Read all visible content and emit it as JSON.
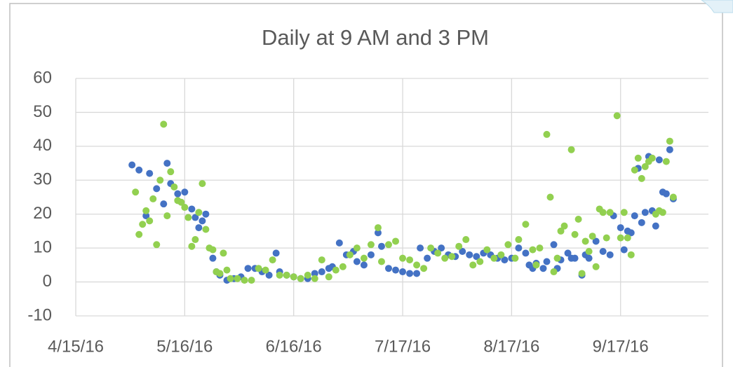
{
  "chart_data": {
    "type": "scatter",
    "title": "Daily at 9 AM and 3 PM",
    "xlim": [
      42475,
      42655
    ],
    "ylim": [
      -10,
      60
    ],
    "xticks": [
      {
        "value": 42475,
        "label": "4/15/16"
      },
      {
        "value": 42506,
        "label": "5/16/16"
      },
      {
        "value": 42537,
        "label": "6/16/16"
      },
      {
        "value": 42568,
        "label": "7/17/16"
      },
      {
        "value": 42599,
        "label": "8/17/16"
      },
      {
        "value": 42630,
        "label": "9/17/16"
      }
    ],
    "yticks": [
      -10,
      0,
      10,
      20,
      30,
      40,
      50,
      60
    ],
    "grid": true,
    "series": [
      {
        "color": "#4472c4",
        "x": [
          42491,
          42493,
          42495,
          42496,
          42498,
          42500,
          42501,
          42502,
          42504,
          42506,
          42508,
          42509,
          42510,
          42511,
          42512,
          42514,
          42515,
          42516,
          42518,
          42520,
          42522,
          42524,
          42526,
          42528,
          42530,
          42532,
          42533,
          42535,
          42537,
          42539,
          42541,
          42543,
          42545,
          42547,
          42548,
          42550,
          42552,
          42554,
          42555,
          42557,
          42559,
          42561,
          42562,
          42564,
          42566,
          42568,
          42570,
          42572,
          42573,
          42575,
          42577,
          42579,
          42581,
          42583,
          42585,
          42587,
          42589,
          42591,
          42593,
          42595,
          42597,
          42599,
          42601,
          42603,
          42604,
          42605,
          42606,
          42608,
          42609,
          42611,
          42612,
          42613,
          42615,
          42616,
          42617,
          42619,
          42620,
          42621,
          42623,
          42625,
          42627,
          42628,
          42630,
          42631,
          42632,
          42633,
          42634,
          42635,
          42636,
          42637,
          42638,
          42639,
          42640,
          42641,
          42642,
          42643,
          42644,
          42645
        ],
        "values": [
          34.5,
          33,
          19.5,
          32,
          27.5,
          23,
          35,
          29,
          26,
          26.5,
          21.5,
          19,
          16,
          18,
          20,
          7,
          3,
          2,
          0.5,
          1,
          1.5,
          4,
          4,
          3,
          2,
          8.5,
          3,
          2,
          1.5,
          1,
          1,
          2.5,
          3,
          4,
          4.5,
          11.5,
          8,
          9,
          6,
          5,
          8,
          14.5,
          10.5,
          4,
          3.5,
          3,
          2.5,
          2.5,
          10,
          7,
          9,
          10,
          8,
          7.5,
          9,
          8,
          7.5,
          8.5,
          8,
          7,
          6.5,
          7,
          10,
          8.5,
          5,
          4,
          5.5,
          4,
          6,
          11,
          4,
          6.5,
          8.5,
          7,
          7,
          2,
          8,
          7,
          12,
          9,
          8,
          19.5,
          16,
          9.5,
          15,
          14.5,
          19.5,
          33.5,
          17.5,
          20.5,
          37,
          21,
          16.5,
          36,
          26.5,
          26,
          39,
          24.5
        ]
      },
      {
        "color": "#92d050",
        "x": [
          42492,
          42493,
          42494,
          42495,
          42496,
          42497,
          42498,
          42499,
          42500,
          42501,
          42502,
          42503,
          42504,
          42505,
          42506,
          42507,
          42508,
          42509,
          42510,
          42511,
          42512,
          42513,
          42514,
          42515,
          42516,
          42517,
          42518,
          42519,
          42521,
          42523,
          42525,
          42527,
          42529,
          42531,
          42533,
          42535,
          42537,
          42539,
          42541,
          42543,
          42545,
          42547,
          42549,
          42551,
          42553,
          42555,
          42557,
          42559,
          42561,
          42562,
          42564,
          42566,
          42568,
          42570,
          42572,
          42574,
          42576,
          42578,
          42580,
          42582,
          42584,
          42586,
          42588,
          42590,
          42592,
          42594,
          42596,
          42598,
          42600,
          42601,
          42603,
          42605,
          42606,
          42607,
          42609,
          42610,
          42611,
          42612,
          42613,
          42614,
          42616,
          42617,
          42618,
          42619,
          42620,
          42621,
          42622,
          42623,
          42624,
          42625,
          42626,
          42627,
          42629,
          42630,
          42631,
          42632,
          42633,
          42634,
          42635,
          42636,
          42637,
          42638,
          42639,
          42640,
          42641,
          42642,
          42643,
          42644,
          42645
        ],
        "values": [
          26.5,
          14,
          17,
          21,
          18,
          24.5,
          11,
          30,
          46.5,
          19.5,
          32.5,
          28,
          24,
          23.5,
          22,
          19,
          10.5,
          12.5,
          20.5,
          29,
          15.5,
          10,
          9.5,
          3,
          2.5,
          8.5,
          3.5,
          1,
          1,
          0.5,
          0.5,
          4,
          3.5,
          6.5,
          2,
          2,
          1.5,
          1,
          2,
          1,
          6.5,
          1.5,
          3.5,
          4.5,
          8,
          10,
          7,
          11,
          16,
          6,
          11,
          12,
          7,
          6.5,
          5,
          4,
          10,
          8.5,
          7,
          7.5,
          10.5,
          12.5,
          5,
          6,
          9.5,
          7,
          8,
          11,
          7,
          12.5,
          17,
          9.5,
          5,
          10,
          43.5,
          25,
          3,
          7,
          15,
          16.5,
          39,
          14,
          18.5,
          2.5,
          12,
          9,
          13.5,
          4.5,
          21.5,
          20.5,
          13,
          20.5,
          49,
          13,
          20.5,
          13,
          8,
          33,
          36.5,
          30.5,
          34,
          35.5,
          36.5,
          20,
          21,
          20.5,
          35.5,
          41.5,
          25
        ]
      }
    ]
  }
}
